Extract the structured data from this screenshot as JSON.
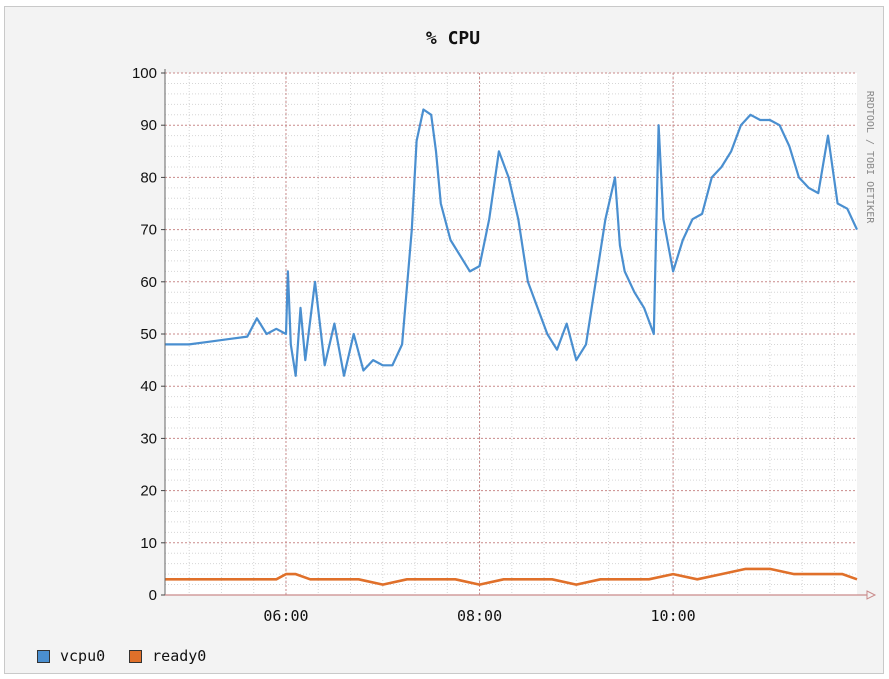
{
  "chart_data": {
    "type": "line",
    "title": "% CPU",
    "side_label": "RRDTOOL / TOBI OETIKER",
    "ylim": [
      0,
      100
    ],
    "y_ticks": [
      0,
      10,
      20,
      30,
      40,
      50,
      60,
      70,
      80,
      90,
      100
    ],
    "xlim": [
      4.75,
      11.9
    ],
    "x_ticks": [
      {
        "label": "06:00",
        "value": 6
      },
      {
        "label": "08:00",
        "value": 8
      },
      {
        "label": "10:00",
        "value": 10
      }
    ],
    "grid": true,
    "legend_position": "bottom-left",
    "series": [
      {
        "name": "vcpu0",
        "color": "#4a8fd0",
        "x": [
          4.75,
          5.0,
          5.2,
          5.4,
          5.6,
          5.7,
          5.8,
          5.9,
          6.0,
          6.02,
          6.05,
          6.1,
          6.15,
          6.2,
          6.3,
          6.4,
          6.5,
          6.6,
          6.7,
          6.8,
          6.9,
          7.0,
          7.1,
          7.2,
          7.3,
          7.35,
          7.42,
          7.5,
          7.55,
          7.6,
          7.7,
          7.8,
          7.9,
          8.0,
          8.1,
          8.2,
          8.3,
          8.4,
          8.5,
          8.6,
          8.7,
          8.8,
          8.9,
          9.0,
          9.1,
          9.2,
          9.3,
          9.4,
          9.45,
          9.5,
          9.6,
          9.7,
          9.8,
          9.85,
          9.9,
          10.0,
          10.1,
          10.2,
          10.3,
          10.4,
          10.5,
          10.6,
          10.7,
          10.8,
          10.9,
          11.0,
          11.1,
          11.2,
          11.3,
          11.4,
          11.5,
          11.6,
          11.7,
          11.8,
          11.9
        ],
        "values": [
          48,
          48,
          48.5,
          49,
          49.5,
          53,
          50,
          51,
          50,
          62,
          48,
          42,
          55,
          45,
          60,
          44,
          52,
          42,
          50,
          43,
          45,
          44,
          44,
          48,
          70,
          87,
          93,
          92,
          85,
          75,
          68,
          65,
          62,
          63,
          72,
          85,
          80,
          72,
          60,
          55,
          50,
          47,
          52,
          45,
          48,
          60,
          72,
          80,
          67,
          62,
          58,
          55,
          50,
          90,
          72,
          62,
          68,
          72,
          73,
          80,
          82,
          85,
          90,
          92,
          91,
          91,
          90,
          86,
          80,
          78,
          77,
          88,
          75,
          74,
          70
        ]
      },
      {
        "name": "ready0",
        "color": "#e0702a",
        "x": [
          4.75,
          5.0,
          5.25,
          5.5,
          5.75,
          5.9,
          6.0,
          6.1,
          6.25,
          6.5,
          6.75,
          7.0,
          7.25,
          7.5,
          7.75,
          8.0,
          8.25,
          8.5,
          8.75,
          9.0,
          9.25,
          9.5,
          9.75,
          10.0,
          10.25,
          10.5,
          10.75,
          11.0,
          11.25,
          11.5,
          11.75,
          11.9
        ],
        "values": [
          3,
          3,
          3,
          3,
          3,
          3,
          4,
          4,
          3,
          3,
          3,
          2,
          3,
          3,
          3,
          2,
          3,
          3,
          3,
          2,
          3,
          3,
          3,
          4,
          3,
          4,
          5,
          5,
          4,
          4,
          4,
          3
        ]
      }
    ]
  }
}
